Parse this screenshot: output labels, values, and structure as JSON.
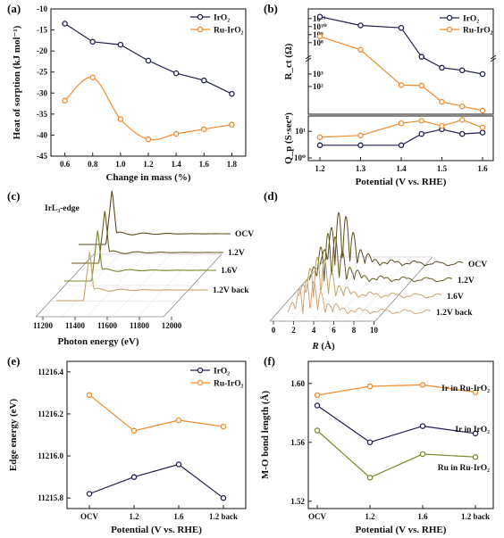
{
  "colors": {
    "navy": "#1f2050",
    "orange": "#f28a2e",
    "green": "#7a8a2a",
    "gold": "#c7a26a",
    "brown": "#5b4a1e",
    "axis": "#222222"
  },
  "chart_data": [
    {
      "panel": "(a)",
      "type": "line",
      "xlabel": "Change in mass (%)",
      "ylabel": "Heat of sorption (kJ mol⁻¹)",
      "xlim": [
        0.5,
        1.9
      ],
      "ylim": [
        -45,
        -10
      ],
      "xticks": [
        "0.6",
        "0.8",
        "1.0",
        "1.2",
        "1.4",
        "1.6",
        "1.8"
      ],
      "yticks": [
        "-10",
        "-15",
        "-20",
        "-25",
        "-30",
        "-35",
        "-40",
        "-45"
      ],
      "legend_position": "top-right",
      "series": [
        {
          "name": "IrO₂",
          "x": [
            0.6,
            0.8,
            1.0,
            1.2,
            1.4,
            1.6,
            1.8
          ],
          "values": [
            -13.5,
            -17.8,
            -18.5,
            -22.3,
            -25.3,
            -27.0,
            -30.2
          ]
        },
        {
          "name": "Ru-IrO₂",
          "x": [
            0.6,
            0.8,
            1.0,
            1.2,
            1.4,
            1.6,
            1.8
          ],
          "values": [
            -31.8,
            -26.3,
            -36.2,
            -41.0,
            -39.7,
            -38.6,
            -37.5
          ]
        }
      ]
    },
    {
      "panel": "(b)",
      "type": "line",
      "xlabel": "Potential (V vs. RHE)",
      "xticks": [
        "1.2",
        "1.3",
        "1.4",
        "1.5",
        "1.6"
      ],
      "top": {
        "ylabel": "R_ct (Ω)",
        "scale": "log",
        "yticks": [
          "10¹¹",
          "10¹⁰",
          "10⁹",
          "10⁸",
          "10³",
          "10²"
        ],
        "legend_position": "top-right",
        "series": [
          {
            "name": "IrO₂",
            "x": [
              1.2,
              1.3,
              1.4,
              1.45,
              1.5,
              1.55,
              1.6
            ],
            "values": [
              170000000000.0,
              14000000000.0,
              7000000000.0,
              24000.0,
              3200.0,
              2000.0,
              1000.0
            ]
          },
          {
            "name": "Ru-IrO₂",
            "x": [
              1.2,
              1.3,
              1.4,
              1.45,
              1.5,
              1.55,
              1.6
            ],
            "values": [
              600000000.0,
              13000000.0,
              130,
              120,
              6,
              2.6,
              1.2
            ]
          }
        ]
      },
      "bottom": {
        "ylabel": "Q_p (S·secⁿ)",
        "yticks": [
          "10¹",
          "10⁰"
        ],
        "series": [
          {
            "name": "IrO₂",
            "x": [
              1.2,
              1.3,
              1.4,
              1.45,
              1.5,
              1.55,
              1.6
            ],
            "values": [
              3,
              3,
              3,
              8,
              12,
              8,
              9
            ]
          },
          {
            "name": "Ru-IrO₂",
            "x": [
              1.2,
              1.3,
              1.4,
              1.45,
              1.5,
              1.55,
              1.6
            ],
            "values": [
              6,
              7,
              20,
              25,
              16,
              27,
              14
            ]
          }
        ]
      }
    },
    {
      "panel": "(c)",
      "type": "line",
      "subtitle": "IrL₃-edge",
      "xlabel": "Photon energy (eV)",
      "xticks": [
        "11200",
        "11400",
        "11600",
        "11800",
        "12000"
      ],
      "series_labels": [
        "OCV",
        "1.2V",
        "1.6V",
        "1.2V back"
      ]
    },
    {
      "panel": "(d)",
      "type": "line",
      "xlabel": "R (Å)",
      "xticks": [
        "0",
        "2",
        "4",
        "6",
        "8",
        "10"
      ],
      "series_labels": [
        "OCV",
        "1.2V",
        "1.6V",
        "1.2V back"
      ]
    },
    {
      "panel": "(e)",
      "type": "line",
      "xlabel": "Potential (V vs. RHE)",
      "ylabel": "Edge energy (eV)",
      "categories": [
        "OCV",
        "1.2",
        "1.6",
        "1.2 back"
      ],
      "ylim": [
        11215.75,
        11216.45
      ],
      "yticks": [
        "11216.4",
        "11216.2",
        "11216.0",
        "11215.8"
      ],
      "legend_position": "top-right",
      "series": [
        {
          "name": "IrO₂",
          "values": [
            11215.82,
            11215.9,
            11215.96,
            11215.8
          ]
        },
        {
          "name": "Ru-IrO₂",
          "values": [
            11216.29,
            11216.12,
            11216.17,
            11216.14
          ]
        }
      ]
    },
    {
      "panel": "(f)",
      "type": "line",
      "xlabel": "Potential (V vs. RHE)",
      "ylabel": "M-O bond length (Å)",
      "categories": [
        "OCV",
        "1.2",
        "1.6",
        "1.2 back"
      ],
      "ylim": [
        1.515,
        1.615
      ],
      "yticks": [
        "1.60",
        "1.56",
        "1.52"
      ],
      "series": [
        {
          "name": "Ir in Ru-IrO₂",
          "values": [
            1.592,
            1.598,
            1.599,
            1.594
          ]
        },
        {
          "name": "Ir in IrO₂",
          "values": [
            1.585,
            1.56,
            1.571,
            1.566
          ]
        },
        {
          "name": "Ru in Ru-IrO₂",
          "values": [
            1.568,
            1.536,
            1.552,
            1.55
          ]
        }
      ]
    }
  ]
}
